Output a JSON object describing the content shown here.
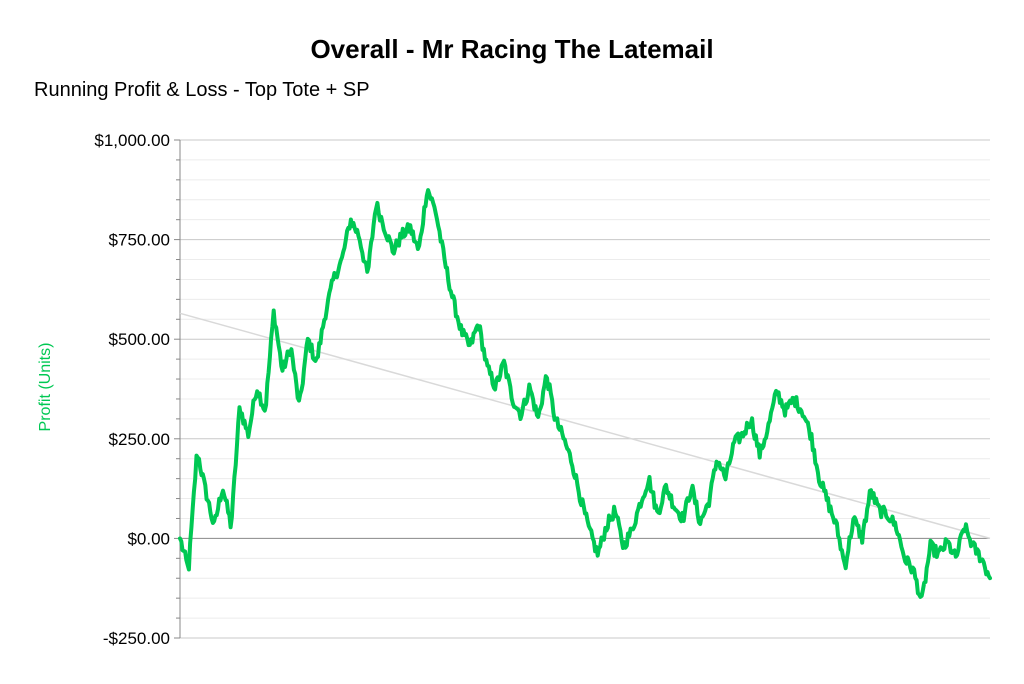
{
  "title": "Overall - Mr Racing The Latemail",
  "subtitle": "Running Profit & Loss - Top Tote + SP",
  "colors": {
    "series": "#00c853",
    "ylabel": "#00c853",
    "trend": "#d9d9d9",
    "zero_line": "#888888",
    "major_grid": "#c8c8c8",
    "minor_grid": "#ececec",
    "axis": "#888888"
  },
  "chart_data": {
    "type": "line",
    "ylabel": "Profit (Units)",
    "xlabel": "",
    "ylim": [
      -250,
      1000
    ],
    "yticks": [
      {
        "value": 1000,
        "label": "$1,000.00"
      },
      {
        "value": 750,
        "label": "$750.00"
      },
      {
        "value": 500,
        "label": "$500.00"
      },
      {
        "value": 250,
        "label": "$250.00"
      },
      {
        "value": 0,
        "label": "$0.00"
      },
      {
        "value": -250,
        "label": "-$250.00"
      }
    ],
    "grid": true,
    "trendline": {
      "start": 565,
      "end": 0
    },
    "series": [
      {
        "values": [
          0,
          -80,
          220,
          120,
          30,
          130,
          30,
          330,
          260,
          380,
          320,
          570,
          420,
          480,
          330,
          500,
          440,
          560,
          650,
          700,
          800,
          760,
          660,
          840,
          780,
          720,
          760,
          780,
          720,
          880,
          820,
          700,
          600,
          520,
          480,
          540,
          430,
          380,
          440,
          350,
          310,
          380,
          300,
          410,
          300,
          250,
          190,
          100,
          20,
          -40,
          30,
          70,
          -20,
          20,
          90,
          150,
          60,
          130,
          80,
          50,
          130,
          40,
          90,
          200,
          150,
          240,
          260,
          300,
          210,
          280,
          370,
          320,
          350,
          320,
          260,
          150,
          90,
          30,
          -70,
          50,
          0,
          120,
          70,
          60,
          30,
          -50,
          -80,
          -160,
          -20,
          -40,
          -10,
          -50,
          30,
          -20,
          -50,
          -100
        ]
      }
    ]
  }
}
